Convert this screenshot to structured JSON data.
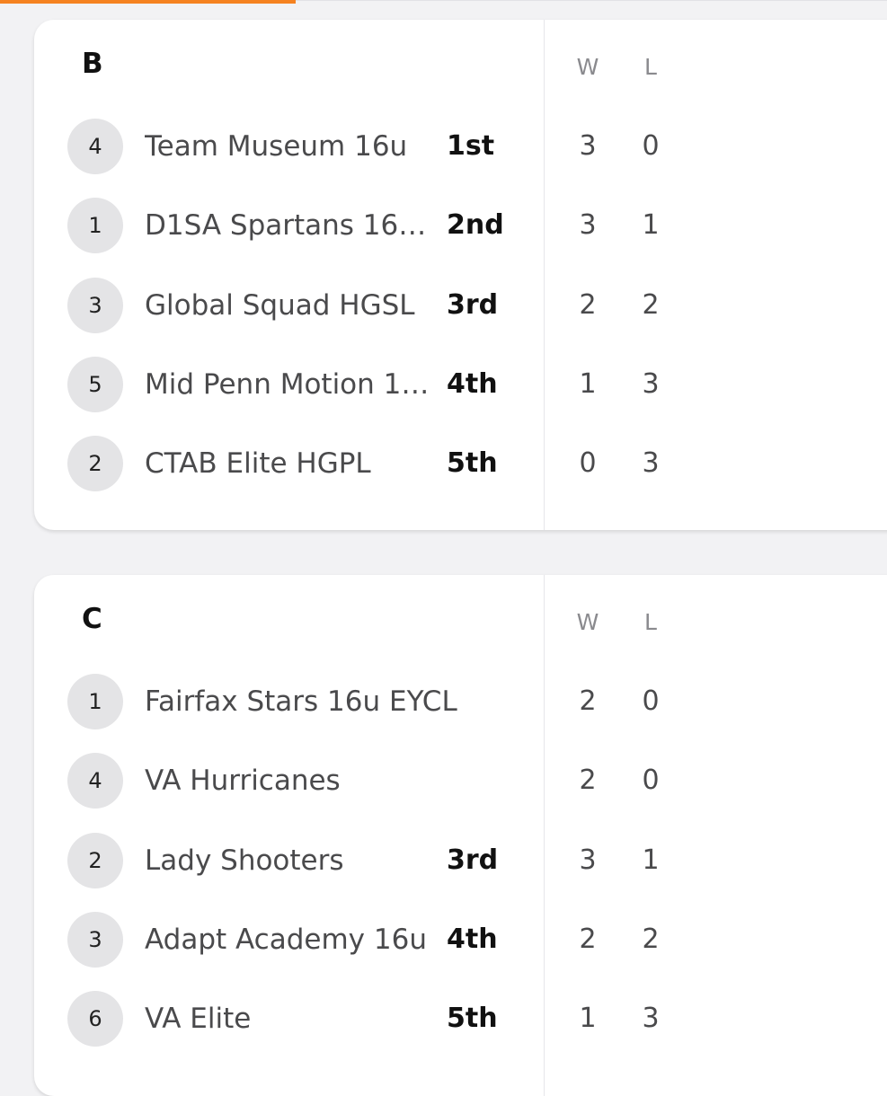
{
  "groups": [
    {
      "title": "B",
      "col_w": "W",
      "col_l": "L",
      "teams": [
        {
          "seed": "4",
          "name": "Team Museum 16u",
          "place": "1st",
          "w": "3",
          "l": "0"
        },
        {
          "seed": "1",
          "name": "D1SA Spartans 16u…",
          "place": "2nd",
          "w": "3",
          "l": "1"
        },
        {
          "seed": "3",
          "name": "Global Squad HGSL",
          "place": "3rd",
          "w": "2",
          "l": "2"
        },
        {
          "seed": "5",
          "name": "Mid Penn Motion 1…",
          "place": "4th",
          "w": "1",
          "l": "3"
        },
        {
          "seed": "2",
          "name": "CTAB Elite HGPL",
          "place": "5th",
          "w": "0",
          "l": "3"
        }
      ]
    },
    {
      "title": "C",
      "col_w": "W",
      "col_l": "L",
      "teams": [
        {
          "seed": "1",
          "name": "Fairfax Stars 16u EYCL",
          "place": "",
          "w": "2",
          "l": "0"
        },
        {
          "seed": "4",
          "name": "VA Hurricanes",
          "place": "",
          "w": "2",
          "l": "0"
        },
        {
          "seed": "2",
          "name": "Lady Shooters",
          "place": "3rd",
          "w": "3",
          "l": "1"
        },
        {
          "seed": "3",
          "name": "Adapt Academy 16u",
          "place": "4th",
          "w": "2",
          "l": "2"
        },
        {
          "seed": "6",
          "name": "VA Elite",
          "place": "5th",
          "w": "1",
          "l": "3"
        }
      ]
    }
  ],
  "colors": {
    "accent": "#f58220",
    "background": "#f2f2f4",
    "seed_bg": "#e4e4e6"
  }
}
